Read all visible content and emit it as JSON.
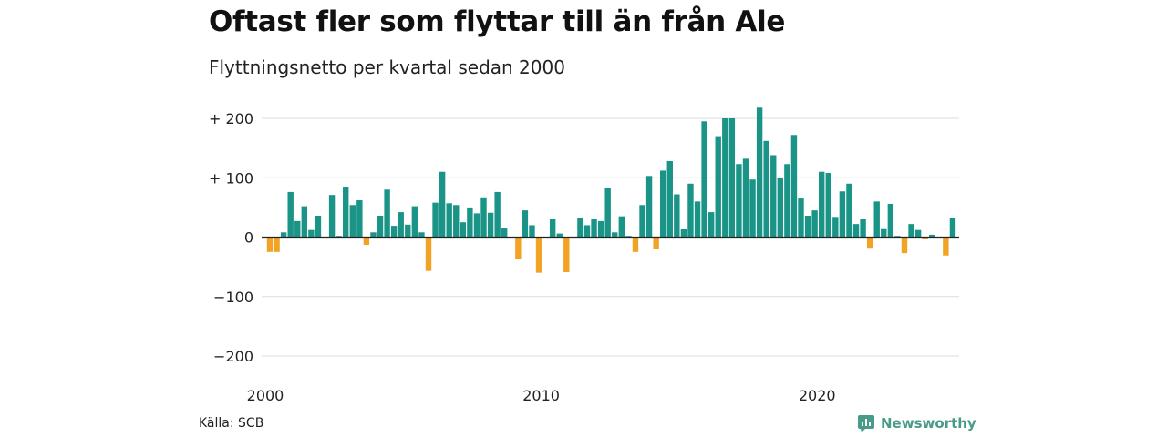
{
  "title": "Oftast fler som flyttar till än från Ale",
  "subtitle": "Flyttningsnetto per kvartal sedan 2000",
  "source": "Källa: SCB",
  "brand": {
    "name": "Newsworthy",
    "icon": "newsworthy-logo-icon"
  },
  "colors": {
    "positive": "#1a9487",
    "negative": "#f2a324",
    "grid": "#dddddd",
    "zero": "#222222"
  },
  "chart_data": {
    "type": "bar",
    "title": "Oftast fler som flyttar till än från Ale",
    "subtitle": "Flyttningsnetto per kvartal sedan 2000",
    "xlabel": "",
    "ylabel": "",
    "start": "2000 Q1",
    "ylim": [
      -200,
      200
    ],
    "yticks": [
      200,
      100,
      0,
      -100,
      -200
    ],
    "ytick_labels": [
      "+ 200",
      "+ 100",
      "0",
      "−100",
      "−200"
    ],
    "xticks": [
      {
        "q": 0,
        "label": "2000"
      },
      {
        "q": 40,
        "label": "2010"
      },
      {
        "q": 80,
        "label": "2020"
      }
    ],
    "grid": true,
    "values": [
      -25,
      -25,
      8,
      76,
      27,
      52,
      12,
      36,
      0,
      71,
      2,
      85,
      54,
      62,
      -13,
      8,
      36,
      80,
      19,
      42,
      21,
      52,
      8,
      -57,
      58,
      110,
      57,
      54,
      25,
      50,
      40,
      67,
      41,
      76,
      16,
      0,
      -37,
      45,
      20,
      -60,
      0,
      31,
      6,
      -59,
      0,
      33,
      20,
      31,
      27,
      82,
      8,
      35,
      2,
      -25,
      54,
      103,
      -20,
      112,
      128,
      72,
      14,
      90,
      60,
      195,
      42,
      170,
      200,
      200,
      123,
      132,
      97,
      218,
      162,
      138,
      100,
      123,
      172,
      65,
      36,
      45,
      110,
      108,
      34,
      77,
      90,
      22,
      31,
      -18,
      60,
      15,
      56,
      2,
      -27,
      22,
      12,
      -3,
      4,
      0,
      -31,
      33
    ]
  }
}
